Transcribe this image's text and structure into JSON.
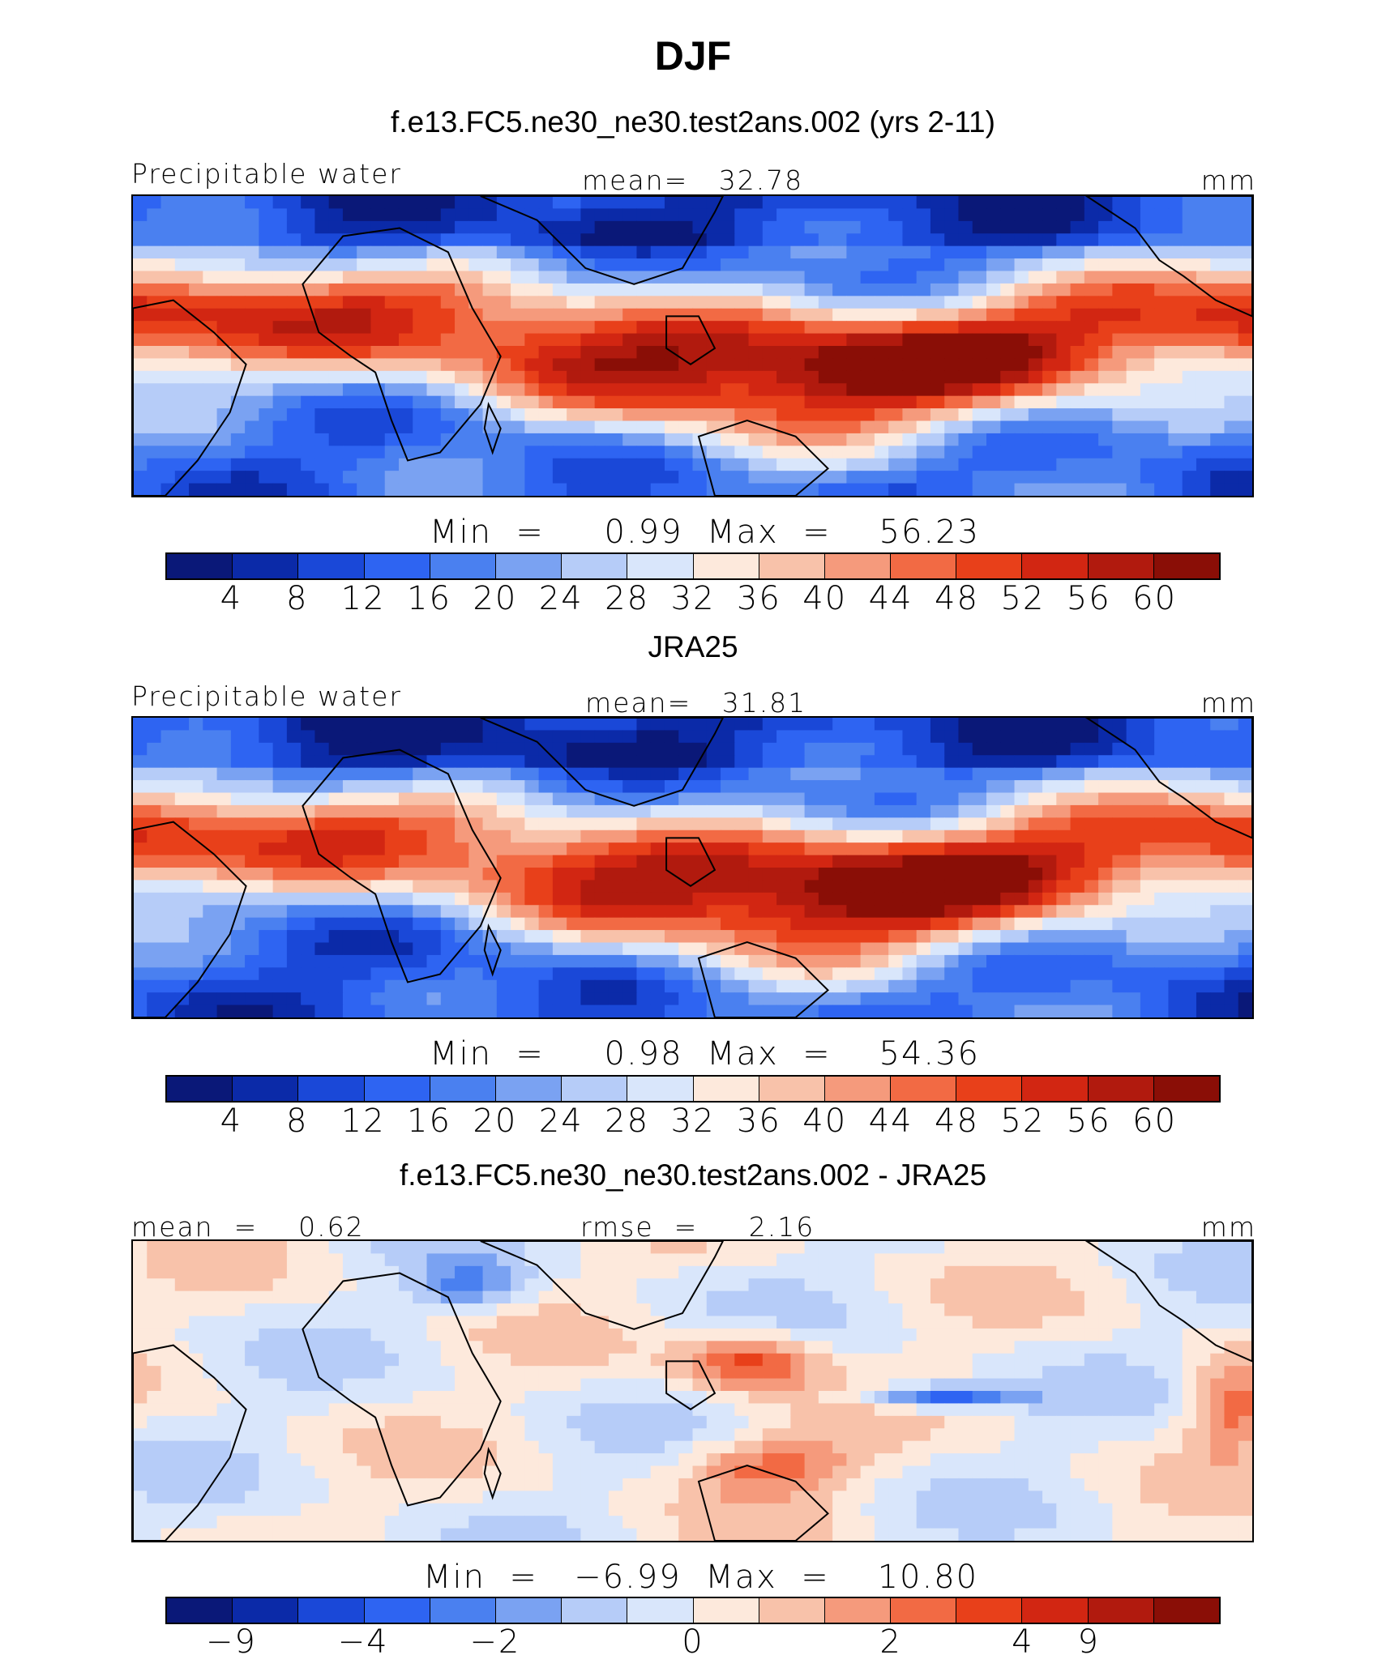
{
  "title": "DJF",
  "palette": [
    "#0a1878",
    "#0b2aa8",
    "#1a48d8",
    "#2e64f2",
    "#4a80f0",
    "#7aa2f2",
    "#b6ccf8",
    "#d9e6fb",
    "#fde9dc",
    "#f8c2aa",
    "#f59a7c",
    "#f26a44",
    "#e8401a",
    "#d22612",
    "#b11a0e",
    "#8a0e06"
  ],
  "chart_data": [
    {
      "type": "heatmap",
      "title": "f.e13.FC5.ne30_ne30.test2ans.002 (yrs 2-11)",
      "left_label": "Precipitable water",
      "center_label": "mean=   32.78",
      "units": "mm",
      "min_max": "Min  =     0.99  Max  =    56.23",
      "colorbar_ticks": [
        "4",
        "8",
        "12",
        "16",
        "20",
        "24",
        "28",
        "32",
        "36",
        "40",
        "44",
        "48",
        "52",
        "56",
        "60"
      ]
    },
    {
      "type": "heatmap",
      "title": "JRA25",
      "left_label": "Precipitable water",
      "center_label": "mean=   31.81",
      "units": "mm",
      "min_max": "Min  =     0.98  Max  =    54.36",
      "colorbar_ticks": [
        "4",
        "8",
        "12",
        "16",
        "20",
        "24",
        "28",
        "32",
        "36",
        "40",
        "44",
        "48",
        "52",
        "56",
        "60"
      ]
    },
    {
      "type": "heatmap",
      "title": "f.e13.FC5.ne30_ne30.test2ans.002 - JRA25",
      "left_label": "mean  =    0.62",
      "center_label": "rmse  =     2.16",
      "units": "mm",
      "min_max": "Min  =   −6.99  Max  =    10.80",
      "colorbar_ticks": [
        "−9",
        "−4",
        "−2",
        "0",
        "2",
        "4",
        "9"
      ]
    }
  ]
}
